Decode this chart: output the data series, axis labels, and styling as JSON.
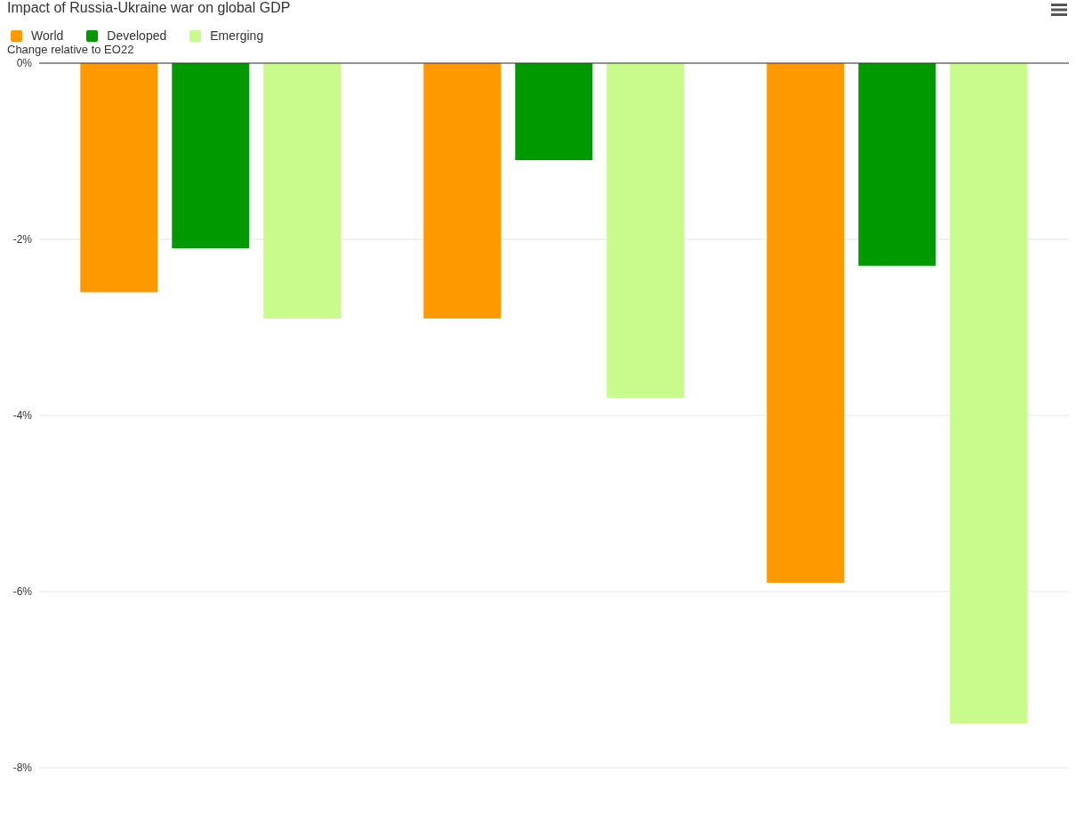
{
  "chart_data": {
    "type": "bar",
    "title": "Impact of Russia-Ukraine war on global GDP",
    "ylabel": "Change relative to EO22",
    "categories": [
      null,
      null,
      null
    ],
    "series": [
      {
        "name": "World",
        "color": "#ff9900",
        "values": [
          -2.6,
          -2.9,
          -5.9
        ]
      },
      {
        "name": "Developed",
        "color": "#009900",
        "values": [
          -2.1,
          -1.1,
          -2.3
        ]
      },
      {
        "name": "Emerging",
        "color": "#c8fb8c",
        "values": [
          -2.9,
          -3.8,
          -7.5
        ]
      }
    ],
    "ylim": [
      -8,
      0
    ],
    "yticks": [
      {
        "value": 0,
        "label": "0%"
      },
      {
        "value": -2,
        "label": "-2%"
      },
      {
        "value": -4,
        "label": "-4%"
      },
      {
        "value": -6,
        "label": "-6%"
      },
      {
        "value": -8,
        "label": "-8%"
      }
    ],
    "grid": "y",
    "legend": "top left",
    "tick_labels": "y"
  }
}
